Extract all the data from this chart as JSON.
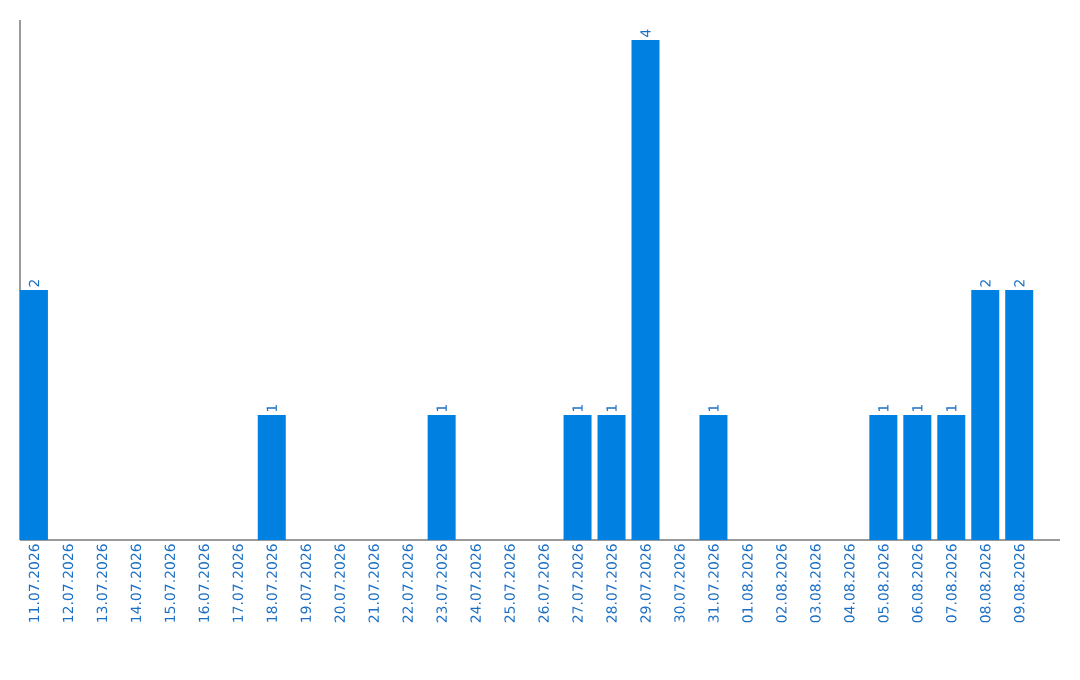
{
  "chart_data": {
    "type": "bar",
    "categories": [
      "11.07.2026",
      "12.07.2026",
      "13.07.2026",
      "14.07.2026",
      "15.07.2026",
      "16.07.2026",
      "17.07.2026",
      "18.07.2026",
      "19.07.2026",
      "20.07.2026",
      "21.07.2026",
      "22.07.2026",
      "23.07.2026",
      "24.07.2026",
      "25.07.2026",
      "26.07.2026",
      "27.07.2026",
      "28.07.2026",
      "29.07.2026",
      "30.07.2026",
      "31.07.2026",
      "01.08.2026",
      "02.08.2026",
      "03.08.2026",
      "04.08.2026",
      "05.08.2026",
      "06.08.2026",
      "07.08.2026",
      "08.08.2026",
      "09.08.2026"
    ],
    "values": [
      2,
      0,
      0,
      0,
      0,
      0,
      0,
      1,
      0,
      0,
      0,
      0,
      1,
      0,
      0,
      0,
      1,
      1,
      4,
      0,
      1,
      0,
      0,
      0,
      0,
      1,
      1,
      1,
      2,
      2
    ],
    "value_labels": [
      "2",
      null,
      null,
      null,
      null,
      null,
      null,
      "1",
      null,
      null,
      null,
      null,
      "1",
      null,
      null,
      null,
      "1",
      "1",
      "4",
      null,
      "1",
      null,
      null,
      null,
      null,
      "1",
      "1",
      "1",
      "2",
      "2"
    ],
    "color": "#0080e0",
    "tick_labels": "x"
  }
}
